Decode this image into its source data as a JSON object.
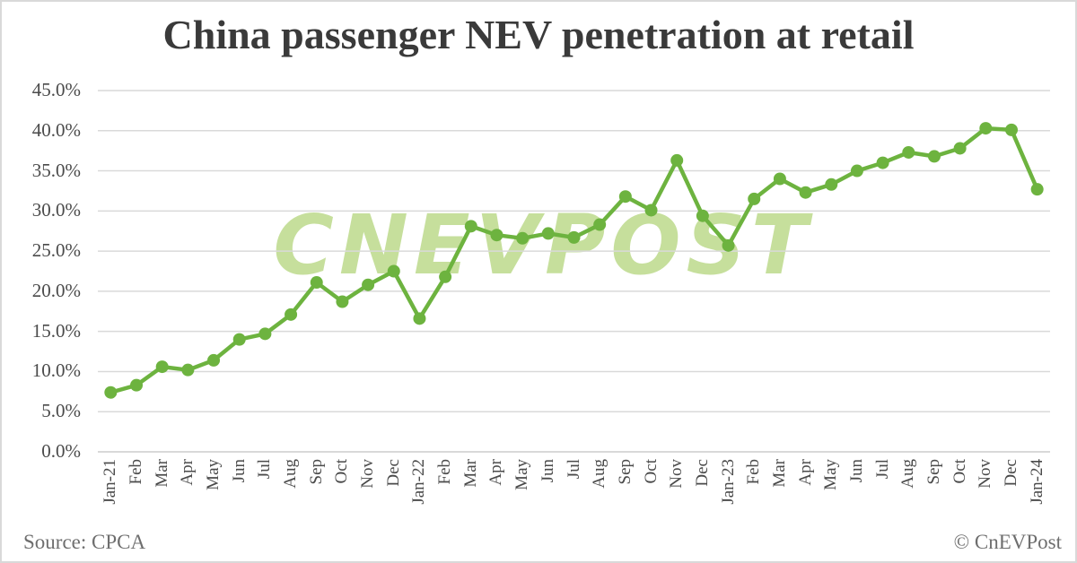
{
  "title": "China passenger NEV penetration at retail",
  "footer": {
    "source": "Source: CPCA",
    "copyright": "© CnEVPost"
  },
  "watermark": "CNEVPOST",
  "colors": {
    "line": "#6db33f",
    "watermark": "#c6df9c",
    "grid": "#d9d9d9",
    "text": "#3a3a3a"
  },
  "chart_data": {
    "type": "line",
    "title": "China passenger NEV penetration at retail",
    "xlabel": "",
    "ylabel": "",
    "ylim": [
      0,
      45
    ],
    "yticks": [
      "0.0%",
      "5.0%",
      "10.0%",
      "15.0%",
      "20.0%",
      "25.0%",
      "30.0%",
      "35.0%",
      "40.0%",
      "45.0%"
    ],
    "grid": true,
    "legend": "none",
    "categories": [
      "Jan-21",
      "Feb",
      "Mar",
      "Apr",
      "May",
      "Jun",
      "Jul",
      "Aug",
      "Sep",
      "Oct",
      "Nov",
      "Dec",
      "Jan-22",
      "Feb",
      "Mar",
      "Apr",
      "May",
      "Jun",
      "Jul",
      "Aug",
      "Sep",
      "Oct",
      "Nov",
      "Dec",
      "Jan-23",
      "Feb",
      "Mar",
      "Apr",
      "May",
      "Jun",
      "Jul",
      "Aug",
      "Sep",
      "Oct",
      "Nov",
      "Dec",
      "Jan-24"
    ],
    "series": [
      {
        "name": "NEV retail penetration",
        "values": [
          7.4,
          8.3,
          10.6,
          10.2,
          11.4,
          14.0,
          14.7,
          17.1,
          21.1,
          18.7,
          20.8,
          22.5,
          16.6,
          21.8,
          28.1,
          27.0,
          26.6,
          27.2,
          26.7,
          28.3,
          31.8,
          30.1,
          36.3,
          29.4,
          25.7,
          31.5,
          34.0,
          32.3,
          33.3,
          35.0,
          36.0,
          37.3,
          36.8,
          37.8,
          40.3,
          40.1,
          32.7
        ]
      }
    ],
    "source": "Source: CPCA",
    "credit": "© CnEVPost"
  }
}
